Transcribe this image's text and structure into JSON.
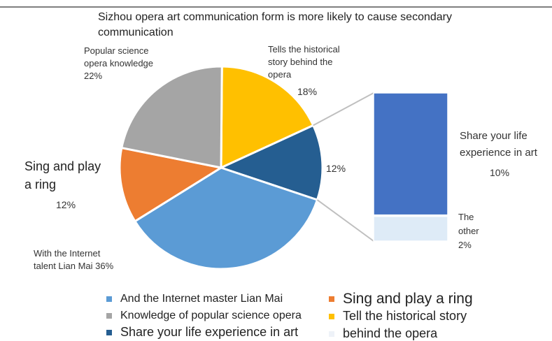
{
  "chart_data": {
    "type": "pie",
    "title": "Sizhou opera art communication form is more likely to cause secondary\ncommunication",
    "slices": [
      {
        "label": "Tells the historical\nstory behind the\nopera",
        "value": 18,
        "display": "18%",
        "color": "#FFC000"
      },
      {
        "label": "",
        "value": 12,
        "display": "12%",
        "color": "#255E91"
      },
      {
        "label": "With the Internet\ntalent Lian Mai 36%",
        "value": 36,
        "display": "",
        "color": "#5B9BD5"
      },
      {
        "label": "Sing and play\n a ring",
        "value": 12,
        "display": "12%",
        "color": "#ED7D31"
      },
      {
        "label": "Popular science\nopera knowledge\n22%",
        "value": 22,
        "display": "",
        "color": "#A5A5A5"
      }
    ],
    "breakdown": {
      "of_slice": 1,
      "items": [
        {
          "label": "Share your life\nexperience in art",
          "value": 10,
          "display": "10%",
          "color": "#4472C4"
        },
        {
          "label": "The\nother\n2%",
          "value": 2,
          "display": "",
          "color": "#DEEBF7"
        }
      ]
    },
    "legend": [
      {
        "label": "And the Internet master Lian Mai",
        "color": "#5B9BD5"
      },
      {
        "label": "Sing and play a ring",
        "color": "#ED7D31"
      },
      {
        "label": "Knowledge of popular science opera",
        "color": "#A5A5A5"
      },
      {
        "label": "Tell the historical story",
        "color": "#FFC000"
      },
      {
        "label": "Share your life experience in art",
        "color": "#255E91"
      },
      {
        "label": "behind the opera",
        "color": "#EEF2F8"
      }
    ]
  }
}
